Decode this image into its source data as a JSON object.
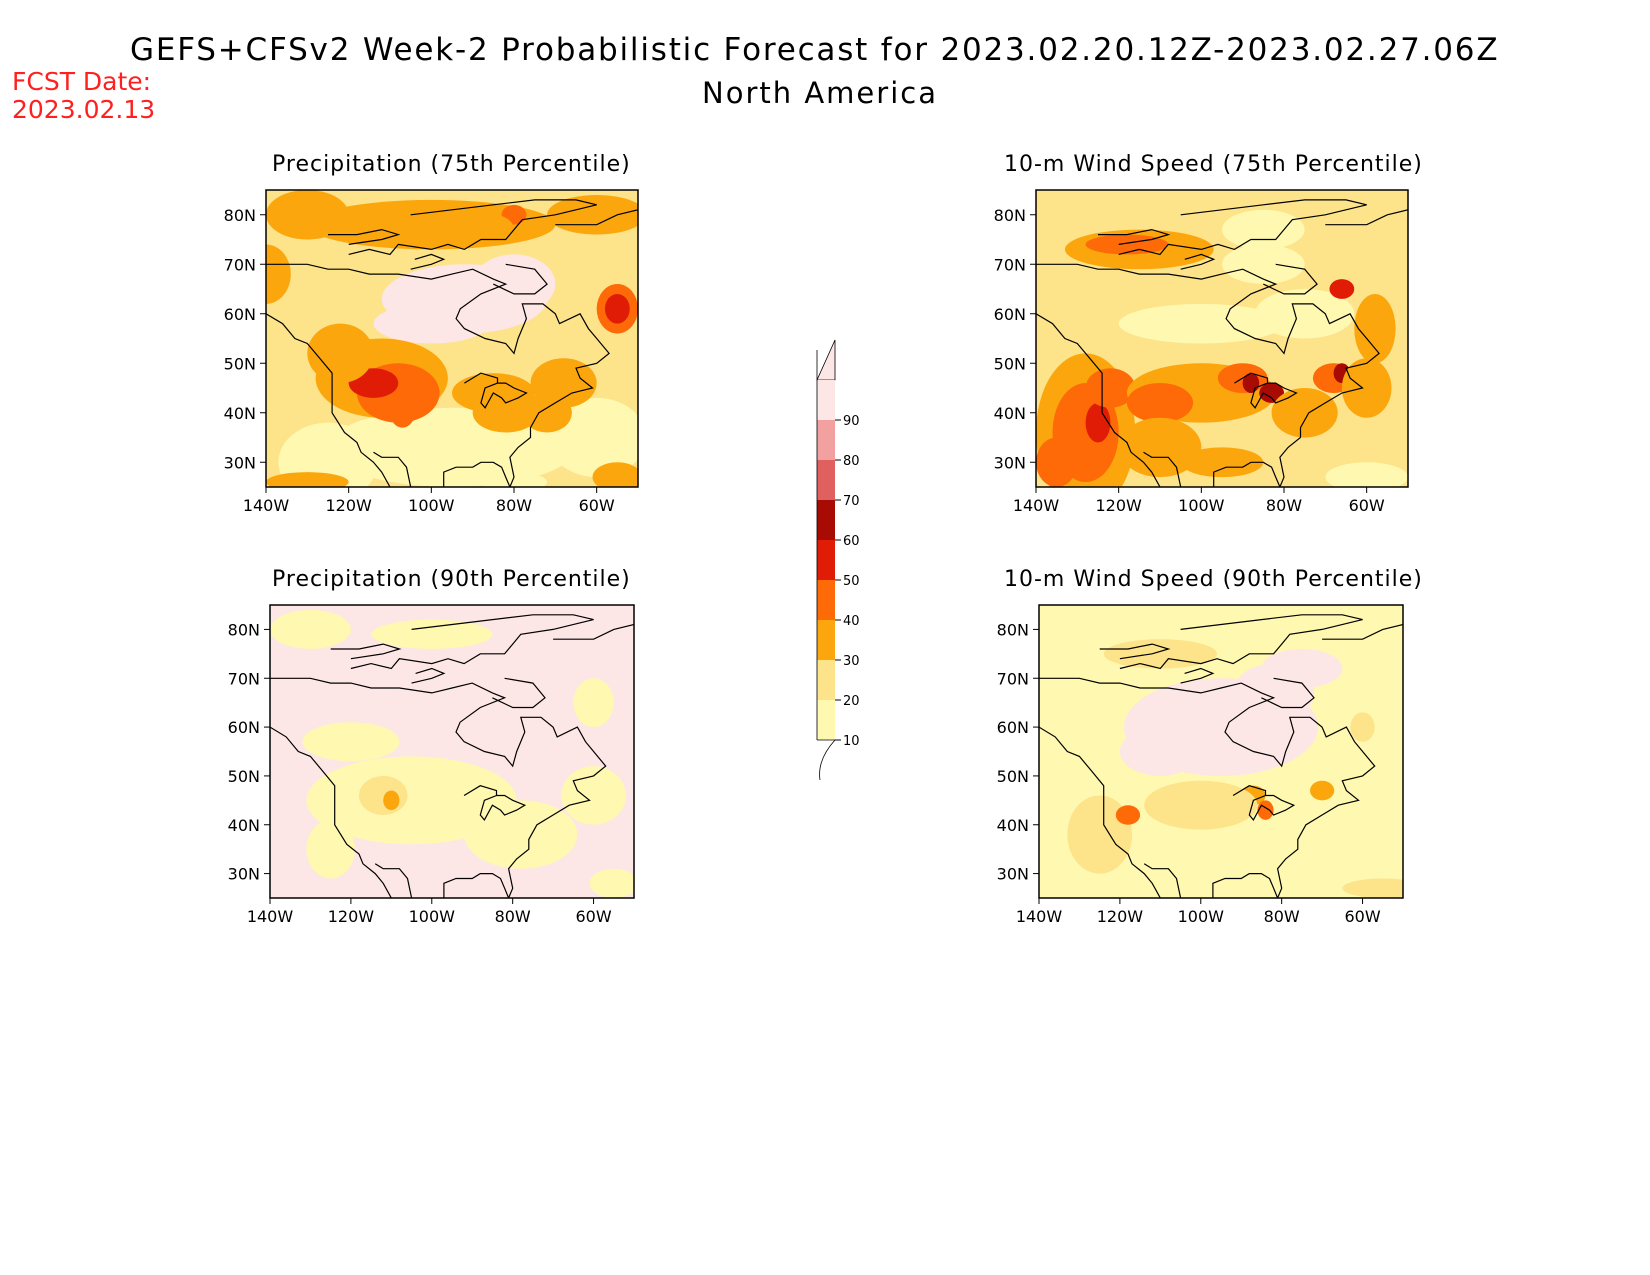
{
  "title": {
    "main": "GEFS+CFSv2 Week-2 Probabilistic Forecast for 2023.02.20.12Z-2023.02.27.06Z",
    "region": "North America"
  },
  "fcst_date": {
    "label": "FCST Date:",
    "value": "2023.02.13"
  },
  "colors": {
    "c10": "#fff8b0",
    "c20": "#fde38a",
    "c30": "#fca60d",
    "c40": "#fd6a07",
    "c50": "#e01c06",
    "c60": "#a80a04",
    "c70": "#e06060",
    "c80": "#f2a0a0",
    "c90": "#fde6e6",
    "coast": "#000000"
  },
  "colorbar": {
    "levels": [
      "10",
      "20",
      "30",
      "40",
      "50",
      "60",
      "70",
      "80",
      "90"
    ]
  },
  "axes": {
    "x_ticks": [
      "140W",
      "120W",
      "100W",
      "80W",
      "60W"
    ],
    "y_ticks": [
      "80N",
      "70N",
      "60N",
      "50N",
      "40N",
      "30N"
    ],
    "lon_range": [
      -140,
      -50
    ],
    "lat_range": [
      25,
      85
    ]
  },
  "panels": [
    {
      "id": "precip75",
      "title": "Precipitation (75th Percentile)",
      "pattern": "precip75"
    },
    {
      "id": "wind75",
      "title": "10-m Wind Speed (75th Percentile)",
      "pattern": "wind75"
    },
    {
      "id": "precip90",
      "title": "Precipitation (90th Percentile)",
      "pattern": "precip90"
    },
    {
      "id": "wind90",
      "title": "10-m Wind Speed (90th Percentile)",
      "pattern": "wind90"
    }
  ]
}
